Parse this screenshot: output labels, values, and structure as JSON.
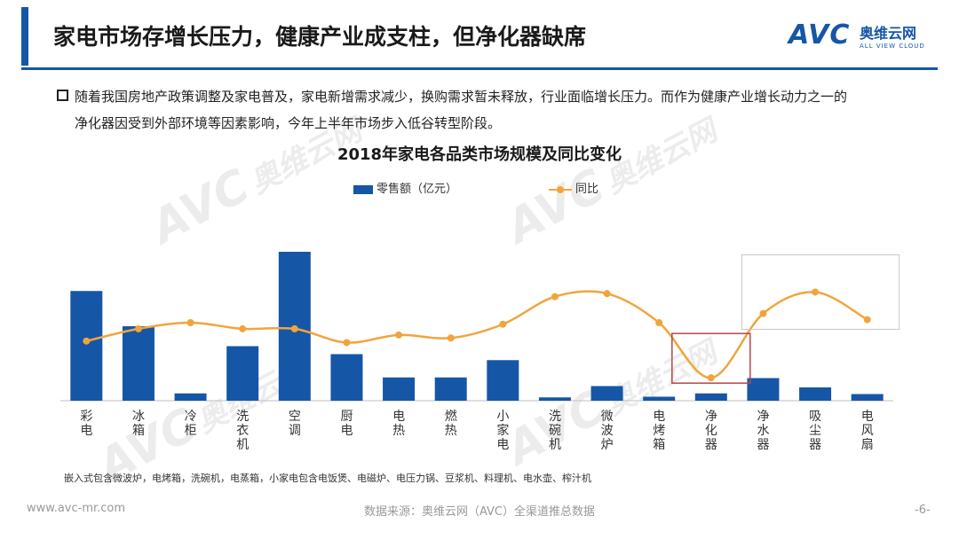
{
  "header": {
    "title": "家电市场存增长压力，健康产业成支柱，但净化器缺席",
    "logo_mark": "AVC",
    "logo_cn": "奥维云网",
    "logo_en": "ALL VIEW CLOUD"
  },
  "body": {
    "line1": "随着我国房地产政策调整及家电普及，家电新增需求减少，换购需求暂未释放，行业面临增长压力。而作为健康产业增长动力之一的",
    "line2": "净化器因受到外部环境等因素影响，今年上半年市场步入低谷转型阶段。"
  },
  "chart_data": {
    "type": "bar",
    "title": "2018年家电各品类市场规模及同比变化",
    "categories": [
      "彩电",
      "冰箱",
      "冷柜",
      "洗衣机",
      "空调",
      "厨电",
      "电热",
      "燃热",
      "小家电",
      "洗碗机",
      "微波炉",
      "电烤箱",
      "净化器",
      "净水器",
      "吸尘器",
      "电风扇"
    ],
    "series": [
      {
        "name": "零售额（亿元）",
        "kind": "bar",
        "color": "#1656a6",
        "values": [
          1650,
          1120,
          110,
          820,
          2240,
          700,
          350,
          350,
          610,
          50,
          220,
          60,
          110,
          340,
          200,
          100
        ]
      },
      {
        "name": "同比",
        "kind": "line",
        "color": "#f0a53c",
        "values": [
          2,
          10,
          14,
          10,
          10,
          1,
          6,
          4,
          13,
          31,
          33,
          14,
          -22,
          20,
          34,
          16
        ]
      }
    ],
    "bar_ylim": [
      0,
      2400
    ],
    "line_ylim": [
      -30,
      80
    ],
    "legend_position": "top",
    "grid": false,
    "highlight_boxes": [
      "净化器",
      "净水器-电风扇"
    ]
  },
  "footnote": "嵌入式包含微波炉，电烤箱，洗碗机，电蒸箱，小家电包含电饭煲、电磁炉、电压力锅、豆浆机、料理机、电水壶、榨汁机",
  "footer": {
    "url": "www.avc-mr.com",
    "source": "数据来源：奥维云网（AVC）全渠道推总数据",
    "page": "-6-"
  }
}
